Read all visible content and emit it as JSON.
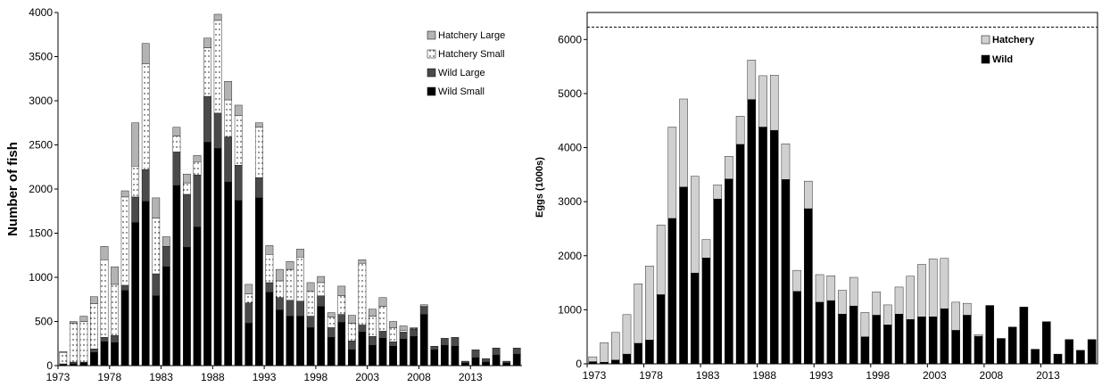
{
  "chart_data": [
    {
      "type": "bar",
      "stacked": true,
      "ylabel": "Number of fish",
      "xlabel": "",
      "ylim": [
        0,
        4000
      ],
      "yticks": [
        0,
        500,
        1000,
        1500,
        2000,
        2500,
        3000,
        3500,
        4000
      ],
      "xtick_labels": [
        "1973",
        "1978",
        "1983",
        "1988",
        "1993",
        "1998",
        "2003",
        "2008",
        "2013"
      ],
      "legend_position": "top-right",
      "years": [
        1973,
        1974,
        1975,
        1976,
        1977,
        1978,
        1979,
        1980,
        1981,
        1982,
        1983,
        1984,
        1985,
        1986,
        1987,
        1988,
        1989,
        1990,
        1991,
        1992,
        1993,
        1994,
        1995,
        1996,
        1997,
        1998,
        1999,
        2000,
        2001,
        2002,
        2003,
        2004,
        2005,
        2006,
        2007,
        2008,
        2009,
        2010,
        2011,
        2012,
        2013,
        2014,
        2015,
        2016,
        2017
      ],
      "series": [
        {
          "name": "Wild Small",
          "color": "#000000",
          "pattern": "solid",
          "values": [
            10,
            20,
            30,
            150,
            270,
            260,
            850,
            1620,
            1860,
            790,
            1120,
            2040,
            1340,
            1570,
            2530,
            2460,
            2080,
            1870,
            480,
            1900,
            830,
            630,
            560,
            560,
            430,
            670,
            320,
            490,
            180,
            380,
            230,
            310,
            220,
            300,
            330,
            580,
            180,
            230,
            220,
            30,
            90,
            40,
            120,
            30,
            130
          ]
        },
        {
          "name": "Wild Large",
          "color": "#4a4a4a",
          "pattern": "solid",
          "values": [
            10,
            20,
            10,
            40,
            50,
            80,
            60,
            290,
            360,
            250,
            230,
            380,
            600,
            590,
            520,
            400,
            510,
            400,
            230,
            230,
            110,
            140,
            180,
            170,
            130,
            120,
            110,
            90,
            100,
            80,
            100,
            80,
            50,
            80,
            80,
            90,
            40,
            80,
            100,
            20,
            90,
            40,
            80,
            20,
            70
          ]
        },
        {
          "name": "Hatchery Small",
          "color": "#ffffff",
          "pattern": "dots",
          "values": [
            130,
            440,
            460,
            510,
            880,
            580,
            1000,
            350,
            1200,
            630,
            0,
            180,
            130,
            150,
            550,
            1050,
            420,
            560,
            100,
            570,
            320,
            190,
            350,
            500,
            280,
            150,
            120,
            210,
            200,
            700,
            230,
            280,
            160,
            20,
            10,
            0,
            0,
            0,
            0,
            0,
            0,
            0,
            0,
            0,
            0
          ]
        },
        {
          "name": "Hatchery Large",
          "color": "#b3b3b3",
          "pattern": "solid",
          "values": [
            10,
            20,
            60,
            80,
            150,
            200,
            70,
            490,
            230,
            230,
            110,
            100,
            100,
            70,
            110,
            70,
            210,
            120,
            110,
            50,
            100,
            130,
            90,
            90,
            100,
            70,
            50,
            110,
            90,
            40,
            80,
            100,
            70,
            50,
            10,
            20,
            0,
            0,
            0,
            0,
            0,
            0,
            0,
            0,
            0
          ]
        }
      ]
    },
    {
      "type": "bar",
      "stacked": true,
      "ylabel": "Eggs (1000s)",
      "xlabel": "",
      "ylim": [
        0,
        6500
      ],
      "yticks": [
        0,
        1000,
        2000,
        3000,
        4000,
        5000,
        6000
      ],
      "xtick_labels": [
        "1973",
        "1978",
        "1983",
        "1988",
        "1993",
        "1998",
        "2003",
        "2008",
        "2013"
      ],
      "reference_line": 6230,
      "legend_position": "top-right",
      "years": [
        1973,
        1974,
        1975,
        1976,
        1977,
        1978,
        1979,
        1980,
        1981,
        1982,
        1983,
        1984,
        1985,
        1986,
        1987,
        1988,
        1989,
        1990,
        1991,
        1992,
        1993,
        1994,
        1995,
        1996,
        1997,
        1998,
        1999,
        2000,
        2001,
        2002,
        2003,
        2004,
        2005,
        2006,
        2007,
        2008,
        2009,
        2010,
        2011,
        2012,
        2013,
        2014,
        2015,
        2016,
        2017
      ],
      "series": [
        {
          "name": "Wild",
          "color": "#000000",
          "values": [
            40,
            30,
            70,
            180,
            380,
            440,
            1280,
            2690,
            3270,
            1680,
            1960,
            3050,
            3420,
            4060,
            4890,
            4380,
            4320,
            3410,
            1340,
            2870,
            1140,
            1170,
            920,
            1070,
            500,
            900,
            720,
            920,
            820,
            870,
            870,
            1020,
            620,
            900,
            510,
            1080,
            470,
            680,
            1050,
            270,
            780,
            180,
            450,
            250,
            450
          ]
        },
        {
          "name": "Hatchery",
          "color": "#d0d0d0",
          "values": [
            90,
            360,
            510,
            730,
            1100,
            1370,
            1290,
            1690,
            1630,
            1790,
            340,
            260,
            420,
            520,
            730,
            950,
            1020,
            660,
            390,
            510,
            510,
            460,
            440,
            530,
            450,
            430,
            370,
            500,
            800,
            970,
            1070,
            930,
            520,
            220,
            30,
            0,
            0,
            0,
            0,
            0,
            0,
            0,
            0,
            0,
            0
          ]
        }
      ]
    }
  ]
}
